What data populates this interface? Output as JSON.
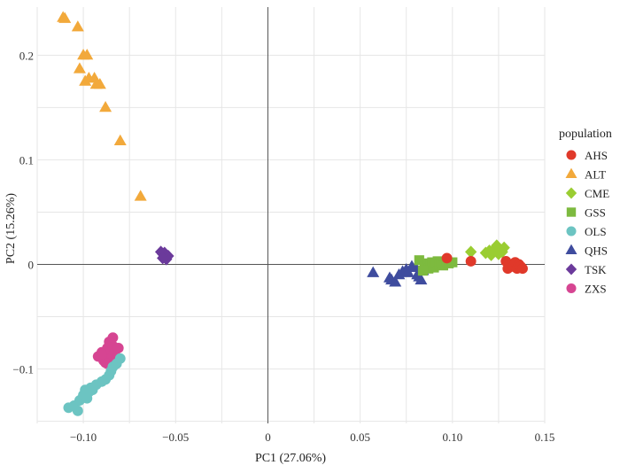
{
  "chart_data": {
    "type": "scatter",
    "title": "",
    "xlabel": "PC1 (27.06%)",
    "ylabel": "PC2 (15.26%)",
    "xlim": [
      -0.125,
      0.15
    ],
    "ylim": [
      -0.152,
      0.246
    ],
    "xticks": [
      -0.1,
      -0.05,
      0,
      0.05,
      0.1,
      0.15
    ],
    "xtick_labels": [
      "−0.10",
      "−0.05",
      "0",
      "0.05",
      "0.10",
      "0.15"
    ],
    "yticks": [
      -0.1,
      0,
      0.1,
      0.2
    ],
    "ytick_labels": [
      "−0.1",
      "0",
      "0.1",
      "0.2"
    ],
    "grid": true,
    "zero_lines": true,
    "legend": {
      "title": "population",
      "position": "right"
    },
    "series": [
      {
        "name": "ALT",
        "color": "#F2A93B",
        "marker": "triangle",
        "points": [
          [
            -0.111,
            0.236
          ],
          [
            -0.11,
            0.235
          ],
          [
            -0.103,
            0.227
          ],
          [
            -0.1,
            0.2
          ],
          [
            -0.098,
            0.2
          ],
          [
            -0.102,
            0.187
          ],
          [
            -0.099,
            0.175
          ],
          [
            -0.097,
            0.178
          ],
          [
            -0.094,
            0.178
          ],
          [
            -0.093,
            0.172
          ],
          [
            -0.091,
            0.172
          ],
          [
            -0.088,
            0.15
          ],
          [
            -0.08,
            0.118
          ],
          [
            -0.069,
            0.065
          ]
        ]
      },
      {
        "name": "TSK",
        "color": "#6B3A9B",
        "marker": "diamond",
        "points": [
          [
            -0.058,
            0.012
          ],
          [
            -0.057,
            0.01
          ],
          [
            -0.056,
            0.008
          ],
          [
            -0.055,
            0.005
          ],
          [
            -0.054,
            0.008
          ],
          [
            -0.056,
            0.011
          ],
          [
            -0.057,
            0.006
          ]
        ]
      },
      {
        "name": "ZXS",
        "color": "#D64592",
        "marker": "circle",
        "points": [
          [
            -0.092,
            -0.088
          ],
          [
            -0.09,
            -0.084
          ],
          [
            -0.089,
            -0.092
          ],
          [
            -0.087,
            -0.08
          ],
          [
            -0.086,
            -0.086
          ],
          [
            -0.085,
            -0.09
          ],
          [
            -0.084,
            -0.078
          ],
          [
            -0.083,
            -0.084
          ],
          [
            -0.086,
            -0.074
          ],
          [
            -0.082,
            -0.09
          ],
          [
            -0.088,
            -0.094
          ],
          [
            -0.084,
            -0.07
          ],
          [
            -0.081,
            -0.08
          ],
          [
            -0.09,
            -0.086
          ],
          [
            -0.087,
            -0.095
          ],
          [
            -0.083,
            -0.094
          ]
        ]
      },
      {
        "name": "OLS",
        "color": "#6CC4C2",
        "marker": "circle",
        "points": [
          [
            -0.108,
            -0.137
          ],
          [
            -0.105,
            -0.135
          ],
          [
            -0.103,
            -0.14
          ],
          [
            -0.102,
            -0.13
          ],
          [
            -0.1,
            -0.125
          ],
          [
            -0.099,
            -0.12
          ],
          [
            -0.097,
            -0.122
          ],
          [
            -0.095,
            -0.12
          ],
          [
            -0.093,
            -0.115
          ],
          [
            -0.09,
            -0.112
          ],
          [
            -0.088,
            -0.11
          ],
          [
            -0.086,
            -0.106
          ],
          [
            -0.085,
            -0.102
          ],
          [
            -0.084,
            -0.098
          ],
          [
            -0.082,
            -0.095
          ],
          [
            -0.08,
            -0.09
          ],
          [
            -0.096,
            -0.118
          ],
          [
            -0.098,
            -0.128
          ]
        ]
      },
      {
        "name": "QHS",
        "color": "#3F4C9E",
        "marker": "triangle",
        "points": [
          [
            0.057,
            -0.008
          ],
          [
            0.066,
            -0.013
          ],
          [
            0.067,
            -0.015
          ],
          [
            0.069,
            -0.017
          ],
          [
            0.071,
            -0.01
          ],
          [
            0.073,
            -0.007
          ],
          [
            0.075,
            -0.005
          ],
          [
            0.076,
            -0.008
          ],
          [
            0.078,
            -0.002
          ],
          [
            0.08,
            -0.003
          ],
          [
            0.081,
            -0.01
          ],
          [
            0.082,
            -0.012
          ],
          [
            0.083,
            -0.015
          ],
          [
            0.084,
            -0.006
          ],
          [
            0.085,
            -0.001
          ]
        ]
      },
      {
        "name": "GSS",
        "color": "#7DBA3F",
        "marker": "square",
        "points": [
          [
            0.082,
            0.004
          ],
          [
            0.085,
            -0.002
          ],
          [
            0.086,
            0.001
          ],
          [
            0.087,
            -0.004
          ],
          [
            0.088,
            0.0
          ],
          [
            0.089,
            0.002
          ],
          [
            0.09,
            -0.003
          ],
          [
            0.091,
            0.001
          ],
          [
            0.092,
            0.003
          ],
          [
            0.093,
            0.0
          ],
          [
            0.094,
            0.002
          ],
          [
            0.095,
            -0.001
          ],
          [
            0.097,
            0.003
          ],
          [
            0.098,
            0.001
          ],
          [
            0.1,
            0.002
          ],
          [
            0.084,
            -0.006
          ]
        ]
      },
      {
        "name": "CME",
        "color": "#9ACD32",
        "marker": "diamond",
        "points": [
          [
            0.11,
            0.012
          ],
          [
            0.118,
            0.011
          ],
          [
            0.12,
            0.013
          ],
          [
            0.121,
            0.009
          ],
          [
            0.123,
            0.015
          ],
          [
            0.124,
            0.018
          ],
          [
            0.126,
            0.014
          ],
          [
            0.127,
            0.012
          ],
          [
            0.128,
            0.016
          ],
          [
            0.125,
            0.01
          ]
        ]
      },
      {
        "name": "AHS",
        "color": "#E0392A",
        "marker": "circle",
        "points": [
          [
            0.097,
            0.006
          ],
          [
            0.11,
            0.003
          ],
          [
            0.129,
            0.003
          ],
          [
            0.13,
            -0.004
          ],
          [
            0.132,
            0.0
          ],
          [
            0.133,
            -0.002
          ],
          [
            0.134,
            0.002
          ],
          [
            0.135,
            -0.004
          ],
          [
            0.136,
            0.0
          ],
          [
            0.137,
            -0.002
          ],
          [
            0.138,
            -0.004
          ]
        ]
      }
    ],
    "legend_order": [
      "AHS",
      "ALT",
      "CME",
      "GSS",
      "OLS",
      "QHS",
      "TSK",
      "ZXS"
    ]
  }
}
